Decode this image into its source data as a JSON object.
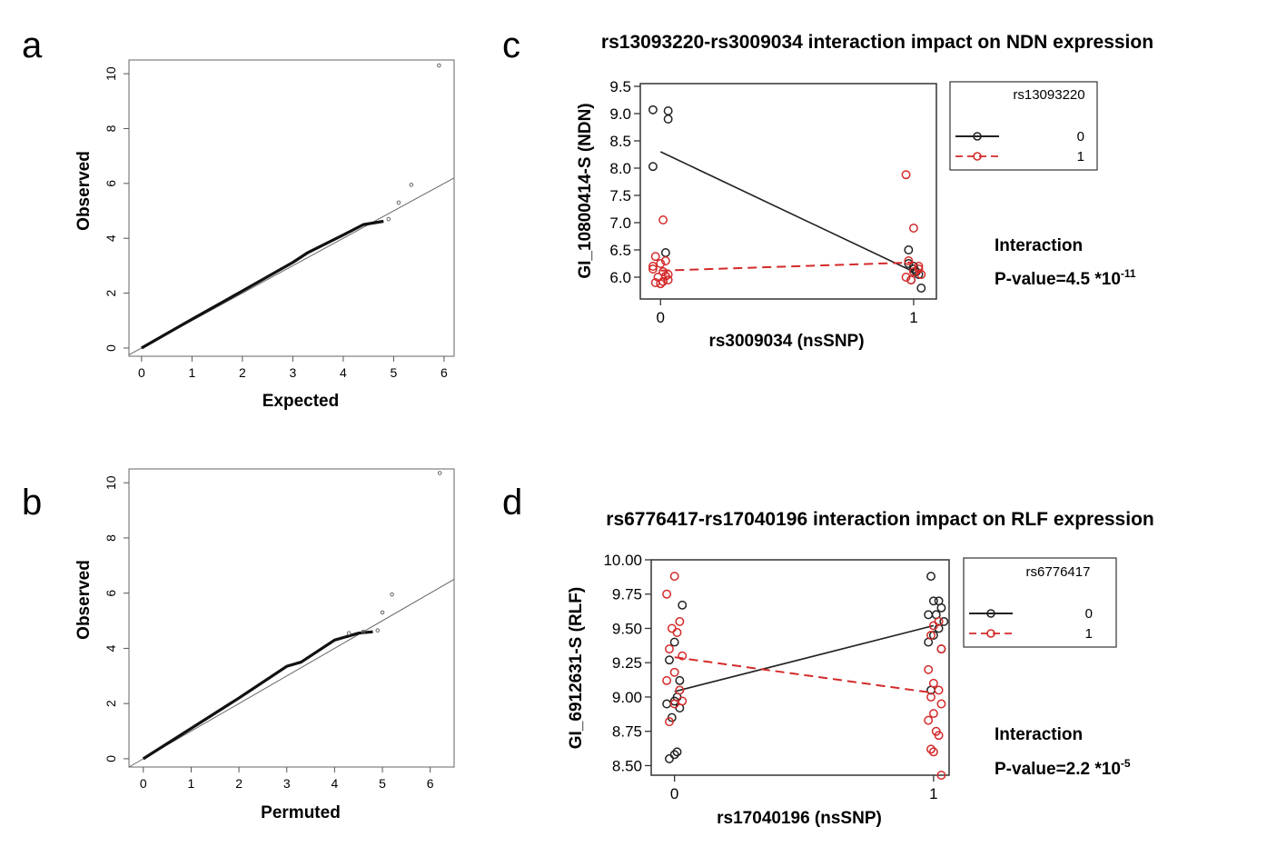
{
  "panels": {
    "a": {
      "letter": "a"
    },
    "b": {
      "letter": "b"
    },
    "c": {
      "letter": "c",
      "interaction_label": "Interaction",
      "pvalue_label": "P-value=4.5 *10",
      "pvalue_exp": "-11"
    },
    "d": {
      "letter": "d",
      "interaction_label": "Interaction",
      "pvalue_label": "P-value=2.2 *10",
      "pvalue_exp": "-5"
    }
  },
  "chart_data": [
    {
      "id": "a",
      "type": "scatter",
      "title": "",
      "xlabel": "Expected",
      "ylabel": "Observed",
      "xlim": [
        -0.25,
        6.2
      ],
      "ylim": [
        -0.3,
        10.5
      ],
      "xticks": [
        0,
        1,
        2,
        3,
        4,
        5,
        6
      ],
      "yticks": [
        0,
        2,
        4,
        6,
        8,
        10
      ],
      "reference_line": {
        "x": [
          -0.25,
          6.2
        ],
        "y": [
          -0.25,
          6.2
        ]
      },
      "observed_curve": {
        "x": [
          0,
          1,
          2,
          3,
          3.3,
          4,
          4.4,
          4.8
        ],
        "y": [
          0,
          1.05,
          2.08,
          3.12,
          3.48,
          4.12,
          4.5,
          4.62
        ]
      },
      "outliers": {
        "x": [
          4.9,
          5.1,
          5.35,
          5.9
        ],
        "y": [
          4.7,
          5.3,
          5.95,
          10.3
        ]
      }
    },
    {
      "id": "b",
      "type": "scatter",
      "title": "",
      "xlabel": "Permuted",
      "ylabel": "Observed",
      "xlim": [
        -0.3,
        6.5
      ],
      "ylim": [
        -0.3,
        10.5
      ],
      "xticks": [
        0,
        1,
        2,
        3,
        4,
        5,
        6
      ],
      "yticks": [
        0,
        2,
        4,
        6,
        8,
        10
      ],
      "reference_line": {
        "x": [
          -0.3,
          6.5
        ],
        "y": [
          -0.3,
          6.5
        ]
      },
      "observed_curve": {
        "x": [
          0,
          1,
          2,
          3,
          3.3,
          4,
          4.5,
          4.8
        ],
        "y": [
          0,
          1.1,
          2.2,
          3.35,
          3.5,
          4.3,
          4.55,
          4.6
        ]
      },
      "outliers": {
        "x": [
          4.3,
          4.6,
          4.9,
          5.0,
          5.2,
          6.2
        ],
        "y": [
          4.55,
          4.6,
          4.65,
          5.3,
          5.95,
          10.35
        ]
      }
    },
    {
      "id": "c",
      "type": "scatter",
      "title": "rs13093220-rs3009034 interaction impact on NDN expression",
      "xlabel": "rs3009034 (nsSNP)",
      "ylabel": "GI_10800414-S (NDN)",
      "xlim": [
        -0.08,
        1.09
      ],
      "ylim": [
        5.6,
        9.55
      ],
      "xticks": [
        0,
        1
      ],
      "yticks": [
        6.0,
        6.5,
        7.0,
        7.5,
        8.0,
        8.5,
        9.0,
        9.5
      ],
      "ytick_labels": [
        "6.0",
        "6.5",
        "7.0",
        "7.5",
        "8.0",
        "8.5",
        "9.0",
        "9.5"
      ],
      "legend": {
        "title": "rs13093220",
        "position": "right",
        "entries": [
          "0",
          "1"
        ]
      },
      "series": [
        {
          "name": "0",
          "color": "#222222",
          "dash": false,
          "line": {
            "x": [
              0,
              1
            ],
            "y": [
              8.3,
              6.1
            ]
          },
          "points": {
            "x": [
              -0.03,
              0.03,
              0.03,
              -0.03,
              0.02,
              0.98,
              0.98,
              1.0,
              1.02,
              0.99,
              1.01,
              1.03,
              1.0
            ],
            "y": [
              9.07,
              8.9,
              9.05,
              8.03,
              6.45,
              6.5,
              6.25,
              6.2,
              6.05,
              5.95,
              6.1,
              5.8,
              6.15
            ]
          }
        },
        {
          "name": "1",
          "color": "#d42a2a",
          "dash": true,
          "line": {
            "x": [
              0,
              1
            ],
            "y": [
              6.12,
              6.27
            ]
          },
          "points": {
            "x": [
              0.01,
              -0.02,
              0.0,
              0.02,
              -0.03,
              0.03,
              -0.01,
              0.01,
              0.03,
              -0.02,
              0.0,
              0.02,
              -0.03,
              0.01,
              0.97,
              1.0,
              0.98,
              1.02,
              1.0,
              0.97,
              1.03,
              0.99,
              1.02
            ],
            "y": [
              7.05,
              6.38,
              6.25,
              6.3,
              6.15,
              6.05,
              6.0,
              6.1,
              5.95,
              5.9,
              5.88,
              6.02,
              6.2,
              5.92,
              7.88,
              6.9,
              6.3,
              6.2,
              6.1,
              6.0,
              6.05,
              5.95,
              6.15
            ]
          }
        }
      ]
    },
    {
      "id": "d",
      "type": "scatter",
      "title": "rs6776417-rs17040196 interaction impact on RLF expression",
      "xlabel": "rs17040196 (nsSNP)",
      "ylabel": "GI_6912631-S (RLF)",
      "xlim": [
        -0.09,
        1.06
      ],
      "ylim": [
        8.43,
        10.0
      ],
      "xticks": [
        0,
        1
      ],
      "yticks": [
        8.5,
        8.75,
        9.0,
        9.25,
        9.5,
        9.75,
        10.0
      ],
      "ytick_labels": [
        "8.50",
        "8.75",
        "9.00",
        "9.25",
        "9.50",
        "9.75",
        "10.00"
      ],
      "legend": {
        "title": "rs6776417",
        "position": "right",
        "entries": [
          "0",
          "1"
        ]
      },
      "series": [
        {
          "name": "0",
          "color": "#222222",
          "dash": false,
          "line": {
            "x": [
              0,
              1
            ],
            "y": [
              9.04,
              9.52
            ]
          },
          "points": {
            "x": [
              0.03,
              0.0,
              -0.02,
              0.02,
              0.01,
              -0.03,
              0.0,
              0.02,
              -0.01,
              0.01,
              -0.02,
              0.0,
              0.99,
              1.0,
              1.02,
              1.03,
              0.98,
              1.01,
              1.04,
              1.0,
              1.02,
              0.98,
              1.03,
              0.99
            ],
            "y": [
              9.67,
              9.4,
              9.27,
              9.12,
              9.0,
              8.95,
              8.97,
              8.92,
              8.85,
              8.6,
              8.55,
              8.58,
              9.88,
              9.7,
              9.7,
              9.65,
              9.6,
              9.6,
              9.55,
              9.45,
              9.5,
              9.4,
              9.35,
              9.05
            ]
          }
        },
        {
          "name": "1",
          "color": "#d42a2a",
          "dash": true,
          "line": {
            "x": [
              0,
              1
            ],
            "y": [
              9.29,
              9.03
            ]
          },
          "points": {
            "x": [
              0.0,
              -0.03,
              0.02,
              -0.01,
              0.01,
              -0.02,
              0.03,
              0.0,
              -0.03,
              0.02,
              0.0,
              -0.02,
              0.03,
              1.0,
              1.02,
              0.99,
              1.03,
              0.98,
              1.0,
              1.02,
              0.99,
              1.03,
              1.0,
              0.98,
              1.01,
              1.02,
              0.99,
              1.0,
              1.03
            ],
            "y": [
              9.88,
              9.75,
              9.55,
              9.5,
              9.47,
              9.35,
              9.3,
              9.18,
              9.12,
              9.05,
              8.95,
              8.82,
              8.97,
              9.52,
              9.55,
              9.45,
              9.35,
              9.2,
              9.1,
              9.05,
              9.0,
              8.95,
              8.88,
              8.83,
              8.75,
              8.72,
              8.62,
              8.6,
              8.43
            ]
          }
        }
      ]
    }
  ]
}
